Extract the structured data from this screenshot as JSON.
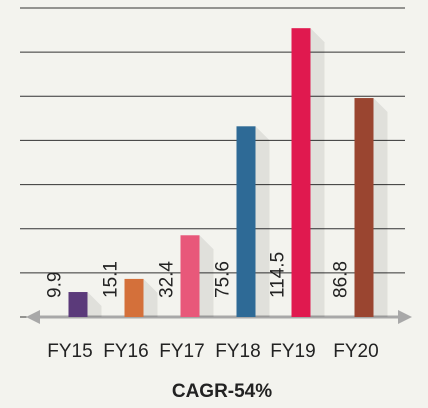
{
  "chart_data": {
    "type": "bar",
    "title": "CAGR-54%",
    "categories": [
      "FY15",
      "FY16",
      "FY17",
      "FY18",
      "FY19",
      "FY20"
    ],
    "values": [
      9.9,
      15.1,
      32.4,
      75.6,
      114.5,
      86.8
    ],
    "colors": [
      "#5b3a7a",
      "#d4703a",
      "#e8587a",
      "#2e6a96",
      "#e0194f",
      "#9a4530"
    ],
    "ylim": [
      0,
      122.5
    ],
    "yticks": [
      0,
      17.5,
      35,
      52.5,
      70,
      87.5,
      105,
      122.5
    ],
    "grid": true
  }
}
